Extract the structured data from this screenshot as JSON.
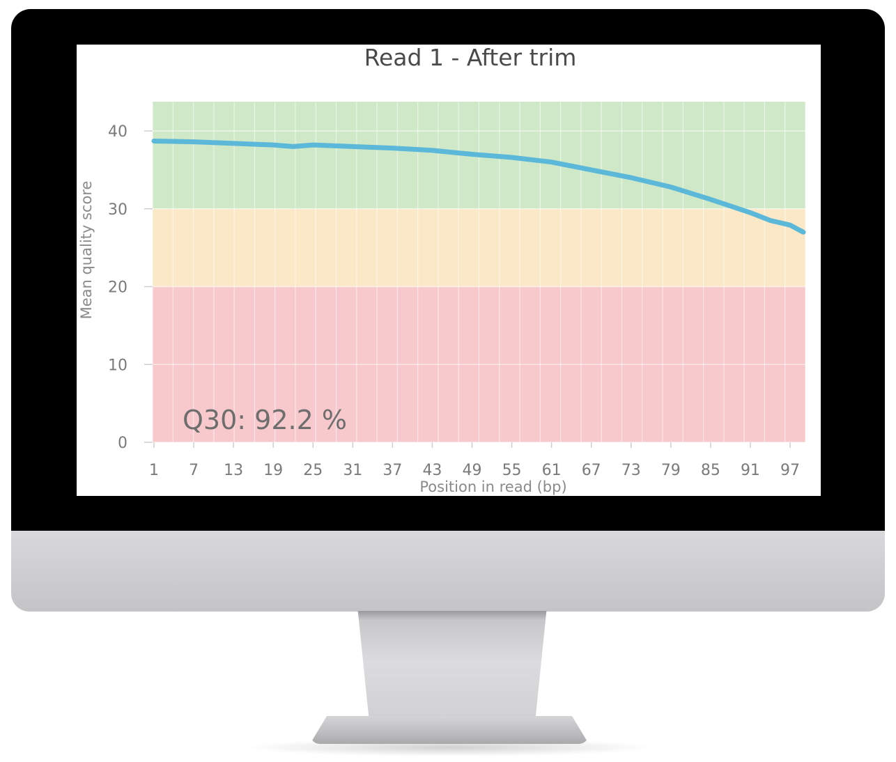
{
  "colors": {
    "zone_good": "#cfe8c8",
    "zone_ok": "#fbe8c6",
    "zone_bad": "#f8c9cc",
    "line": "#5cb8d9"
  },
  "chart_data": {
    "type": "line",
    "title": "Read 1 - After trim",
    "xlabel": "Position in read (bp)",
    "ylabel": "Mean quality score",
    "annotation": "Q30: 92.2 %",
    "xlim": [
      1,
      99
    ],
    "ylim": [
      0,
      40
    ],
    "yticks": [
      0,
      10,
      20,
      30,
      40
    ],
    "xticks": [
      1,
      7,
      13,
      19,
      25,
      31,
      37,
      43,
      49,
      55,
      61,
      67,
      73,
      79,
      85,
      91,
      97
    ],
    "bands": [
      {
        "from": 30,
        "to": 40,
        "color": "#cfe8c8"
      },
      {
        "from": 20,
        "to": 30,
        "color": "#fbe8c6"
      },
      {
        "from": 0,
        "to": 20,
        "color": "#f8c9cc"
      }
    ],
    "grid": true,
    "series": [
      {
        "x": [
          1,
          7,
          13,
          19,
          22,
          25,
          31,
          37,
          43,
          49,
          55,
          61,
          67,
          73,
          79,
          85,
          91,
          94,
          97,
          99
        ],
        "y": [
          38.7,
          38.6,
          38.4,
          38.2,
          38.0,
          38.2,
          38.0,
          37.8,
          37.5,
          37.0,
          36.6,
          36.0,
          35.0,
          34.0,
          32.8,
          31.2,
          29.5,
          28.5,
          27.9,
          27.0
        ]
      }
    ]
  }
}
